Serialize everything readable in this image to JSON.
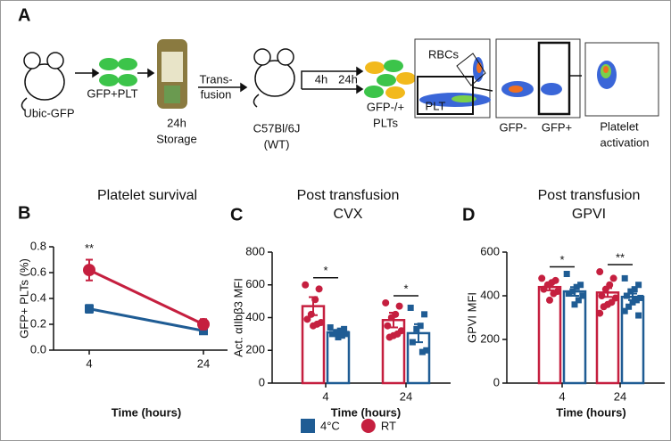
{
  "schematic": {
    "label": "A",
    "steps": [
      "Ubic-GFP",
      "GFP+PLT",
      "24h",
      "Storage",
      "Trans-",
      "fusion",
      "C57Bl/6J",
      "(WT)",
      "4h",
      "24h",
      "GFP-/+",
      "PLTs",
      "RBCs",
      "PLT",
      "GFP-",
      "GFP+",
      "Platelet",
      "activation"
    ]
  },
  "chart_data": [
    {
      "type": "line",
      "label": "B",
      "title": "Platelet survival",
      "x_label": "Time (hours)",
      "y_label": "GFP+ PLTs (%)",
      "categories": [
        "4",
        "24"
      ],
      "ylim": [
        0,
        0.8
      ],
      "yticks": [
        {
          "value": 0,
          "label": "0.0"
        },
        0.2,
        0.4,
        0.6,
        0.8
      ],
      "series": [
        {
          "color": "#1f5c94",
          "marker": "square",
          "values": [
            0.32,
            0.15
          ],
          "errors": [
            0.03,
            0.02
          ]
        },
        {
          "color": "#c51f3f",
          "marker": "circle",
          "values": [
            0.62,
            0.2
          ],
          "errors": [
            0.08,
            0.04
          ]
        }
      ],
      "annotations": [
        "**",
        null
      ]
    },
    {
      "type": "bar",
      "label": "C",
      "title": "Post transfusion",
      "subtitle": "CVX",
      "x_label": "Time (hours)",
      "y_label": "Act. αIIbβ3 MFI",
      "categories": [
        "4",
        "24"
      ],
      "ylim": [
        0,
        800
      ],
      "yticks": [
        0,
        200,
        400,
        600,
        800
      ],
      "series": [
        {
          "color": "#c51f3f",
          "marker": "circle",
          "values": [
            470,
            385
          ],
          "errors": [
            55,
            45
          ],
          "points": [
            [
              600,
              575,
              510,
              420,
              390,
              370,
              360,
              350
            ],
            [
              490,
              470,
              420,
              400,
              350,
              320,
              300,
              290,
              280
            ]
          ]
        },
        {
          "color": "#1f5c94",
          "marker": "square",
          "values": [
            310,
            305
          ],
          "errors": [
            15,
            55
          ],
          "points": [
            [
              340,
              330,
              320,
              310,
              300,
              300,
              290,
              280
            ],
            [
              460,
              420,
              350,
              330,
              250,
              200,
              190
            ]
          ]
        }
      ],
      "annotations": [
        "*",
        "*"
      ]
    },
    {
      "type": "bar",
      "label": "D",
      "title": "Post transfusion",
      "subtitle": "GPVI",
      "x_label": "Time (hours)",
      "y_label": "GPVI MFI",
      "categories": [
        "4",
        "24"
      ],
      "ylim": [
        0,
        600
      ],
      "yticks": [
        0,
        200,
        400,
        600
      ],
      "series": [
        {
          "color": "#c51f3f",
          "marker": "circle",
          "values": [
            440,
            415
          ],
          "errors": [
            15,
            20
          ],
          "points": [
            [
              480,
              470,
              460,
              450,
              430,
              420,
              410,
              380
            ],
            [
              510,
              480,
              450,
              430,
              400,
              390,
              370,
              360,
              350,
              320
            ]
          ]
        },
        {
          "color": "#1f5c94",
          "marker": "square",
          "values": [
            420,
            395
          ],
          "errors": [
            20,
            15
          ],
          "points": [
            [
              500,
              450,
              440,
              420,
              410,
              400,
              380,
              360
            ],
            [
              480,
              450,
              430,
              420,
              400,
              390,
              380,
              370,
              350,
              330,
              310
            ]
          ]
        }
      ],
      "annotations": [
        "*",
        "**"
      ]
    }
  ],
  "legend": [
    {
      "name": "4°C",
      "color": "#1f5c94",
      "marker": "square"
    },
    {
      "name": "RT",
      "color": "#c51f3f",
      "marker": "circle"
    }
  ]
}
